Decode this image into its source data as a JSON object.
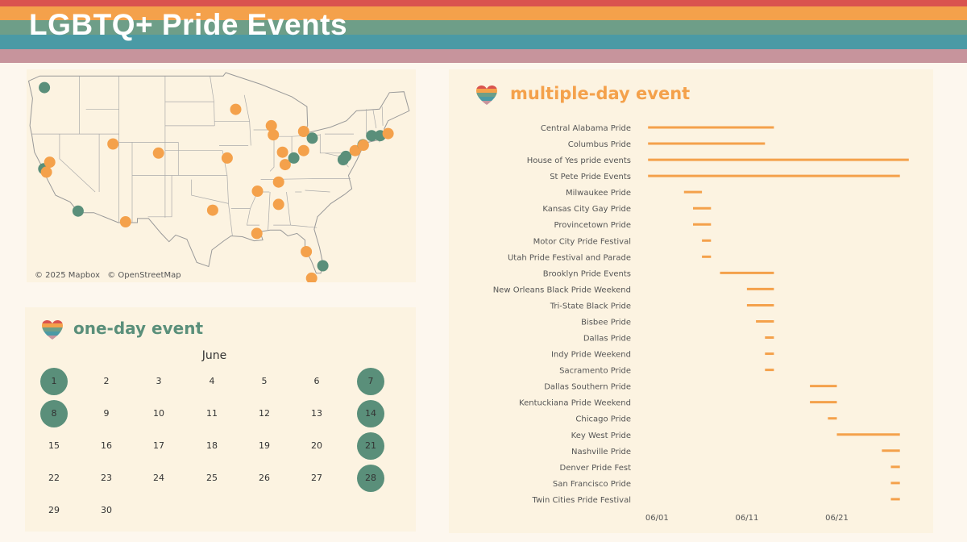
{
  "header": {
    "title": "LGBTQ+ Pride Events",
    "stripe_colors": [
      "#d9534f",
      "#f4a14b",
      "#6e9e88",
      "#4a9aa5",
      "#c7949c"
    ]
  },
  "colors": {
    "multi_day": "#f4a14b",
    "one_day": "#5a8f7a",
    "panel_bg": "#fcf3e1",
    "page_bg": "#fdf7ee"
  },
  "map": {
    "attribution": [
      "© 2025 Mapbox",
      "© OpenStreetMap"
    ],
    "points": [
      {
        "lon": -122.3,
        "lat": 47.6,
        "kind": "one-day"
      },
      {
        "lon": -122.4,
        "lat": 37.8,
        "kind": "one-day"
      },
      {
        "lon": -121.5,
        "lat": 38.6,
        "kind": "multi-day"
      },
      {
        "lon": -122.0,
        "lat": 37.4,
        "kind": "multi-day"
      },
      {
        "lon": -117.2,
        "lat": 32.7,
        "kind": "one-day"
      },
      {
        "lon": -110.0,
        "lat": 31.4,
        "kind": "multi-day"
      },
      {
        "lon": -111.9,
        "lat": 40.8,
        "kind": "multi-day"
      },
      {
        "lon": -105.0,
        "lat": 39.7,
        "kind": "multi-day"
      },
      {
        "lon": -96.8,
        "lat": 32.8,
        "kind": "multi-day"
      },
      {
        "lon": -94.6,
        "lat": 39.1,
        "kind": "multi-day"
      },
      {
        "lon": -93.3,
        "lat": 44.97,
        "kind": "multi-day"
      },
      {
        "lon": -87.9,
        "lat": 43.0,
        "kind": "multi-day"
      },
      {
        "lon": -87.6,
        "lat": 41.9,
        "kind": "multi-day"
      },
      {
        "lon": -90.0,
        "lat": 35.1,
        "kind": "multi-day"
      },
      {
        "lon": -86.8,
        "lat": 33.5,
        "kind": "multi-day"
      },
      {
        "lon": -86.8,
        "lat": 36.2,
        "kind": "multi-day"
      },
      {
        "lon": -85.8,
        "lat": 38.3,
        "kind": "multi-day"
      },
      {
        "lon": -86.2,
        "lat": 39.8,
        "kind": "multi-day"
      },
      {
        "lon": -84.5,
        "lat": 39.1,
        "kind": "one-day"
      },
      {
        "lon": -83.0,
        "lat": 40.0,
        "kind": "multi-day"
      },
      {
        "lon": -83.0,
        "lat": 42.3,
        "kind": "multi-day"
      },
      {
        "lon": -81.7,
        "lat": 41.5,
        "kind": "one-day"
      },
      {
        "lon": -90.1,
        "lat": 30.0,
        "kind": "multi-day"
      },
      {
        "lon": -80.1,
        "lat": 26.1,
        "kind": "one-day"
      },
      {
        "lon": -82.6,
        "lat": 27.8,
        "kind": "multi-day"
      },
      {
        "lon": -81.8,
        "lat": 24.6,
        "kind": "multi-day"
      },
      {
        "lon": -77.0,
        "lat": 38.9,
        "kind": "one-day"
      },
      {
        "lon": -76.6,
        "lat": 39.3,
        "kind": "one-day"
      },
      {
        "lon": -75.2,
        "lat": 40.0,
        "kind": "multi-day"
      },
      {
        "lon": -74.0,
        "lat": 40.7,
        "kind": "one-day"
      },
      {
        "lon": -73.95,
        "lat": 40.65,
        "kind": "multi-day"
      },
      {
        "lon": -72.7,
        "lat": 41.8,
        "kind": "one-day"
      },
      {
        "lon": -71.4,
        "lat": 41.8,
        "kind": "one-day"
      },
      {
        "lon": -70.2,
        "lat": 42.05,
        "kind": "multi-day"
      }
    ]
  },
  "calendar": {
    "title": "one-day event",
    "month": "June",
    "days": [
      "1",
      "2",
      "3",
      "4",
      "5",
      "6",
      "7",
      "8",
      "9",
      "10",
      "11",
      "12",
      "13",
      "14",
      "15",
      "16",
      "17",
      "18",
      "19",
      "20",
      "21",
      "22",
      "23",
      "24",
      "25",
      "26",
      "27",
      "28",
      "29",
      "30"
    ],
    "highlighted": [
      1,
      7,
      8,
      14,
      21,
      28
    ]
  },
  "gantt": {
    "title": "multiple-day event"
  },
  "chart_data": {
    "type": "gantt",
    "title": "multiple-day event",
    "x_axis": {
      "type": "date",
      "tick_labels": [
        "06/01",
        "06/11",
        "06/21"
      ],
      "ticks": [
        "2025-06-01",
        "2025-06-11",
        "2025-06-21"
      ],
      "range": [
        "2025-05-30",
        "2025-06-30"
      ]
    },
    "series": [
      {
        "label": "Central Alabama Pride",
        "start": "2025-05-31",
        "end": "2025-06-14"
      },
      {
        "label": "Columbus Pride",
        "start": "2025-05-31",
        "end": "2025-06-13"
      },
      {
        "label": "House of Yes pride events",
        "start": "2025-05-31",
        "end": "2025-06-29"
      },
      {
        "label": "St Pete Pride Events",
        "start": "2025-05-31",
        "end": "2025-06-28"
      },
      {
        "label": "Milwaukee Pride",
        "start": "2025-06-04",
        "end": "2025-06-06"
      },
      {
        "label": "Kansas City Gay Pride",
        "start": "2025-06-05",
        "end": "2025-06-07"
      },
      {
        "label": "Provincetown Pride",
        "start": "2025-06-05",
        "end": "2025-06-07"
      },
      {
        "label": "Motor City Pride Festival",
        "start": "2025-06-06",
        "end": "2025-06-07"
      },
      {
        "label": "Utah Pride Festival and Parade",
        "start": "2025-06-06",
        "end": "2025-06-07"
      },
      {
        "label": "Brooklyn Pride Events",
        "start": "2025-06-08",
        "end": "2025-06-14"
      },
      {
        "label": "New Orleans Black Pride Weekend",
        "start": "2025-06-11",
        "end": "2025-06-14"
      },
      {
        "label": "Tri-State Black Pride",
        "start": "2025-06-11",
        "end": "2025-06-14"
      },
      {
        "label": "Bisbee Pride",
        "start": "2025-06-12",
        "end": "2025-06-14"
      },
      {
        "label": "Dallas Pride",
        "start": "2025-06-13",
        "end": "2025-06-14"
      },
      {
        "label": "Indy Pride Weekend",
        "start": "2025-06-13",
        "end": "2025-06-14"
      },
      {
        "label": "Sacramento Pride",
        "start": "2025-06-13",
        "end": "2025-06-14"
      },
      {
        "label": "Dallas Southern Pride",
        "start": "2025-06-18",
        "end": "2025-06-21"
      },
      {
        "label": "Kentuckiana Pride Weekend",
        "start": "2025-06-18",
        "end": "2025-06-21"
      },
      {
        "label": "Chicago Pride",
        "start": "2025-06-20",
        "end": "2025-06-21"
      },
      {
        "label": "Key West Pride",
        "start": "2025-06-21",
        "end": "2025-06-28"
      },
      {
        "label": "Nashville Pride",
        "start": "2025-06-26",
        "end": "2025-06-28"
      },
      {
        "label": "Denver Pride Fest",
        "start": "2025-06-27",
        "end": "2025-06-28"
      },
      {
        "label": "San Francisco Pride",
        "start": "2025-06-27",
        "end": "2025-06-28"
      },
      {
        "label": "Twin Cities Pride Festival",
        "start": "2025-06-27",
        "end": "2025-06-28"
      }
    ]
  }
}
